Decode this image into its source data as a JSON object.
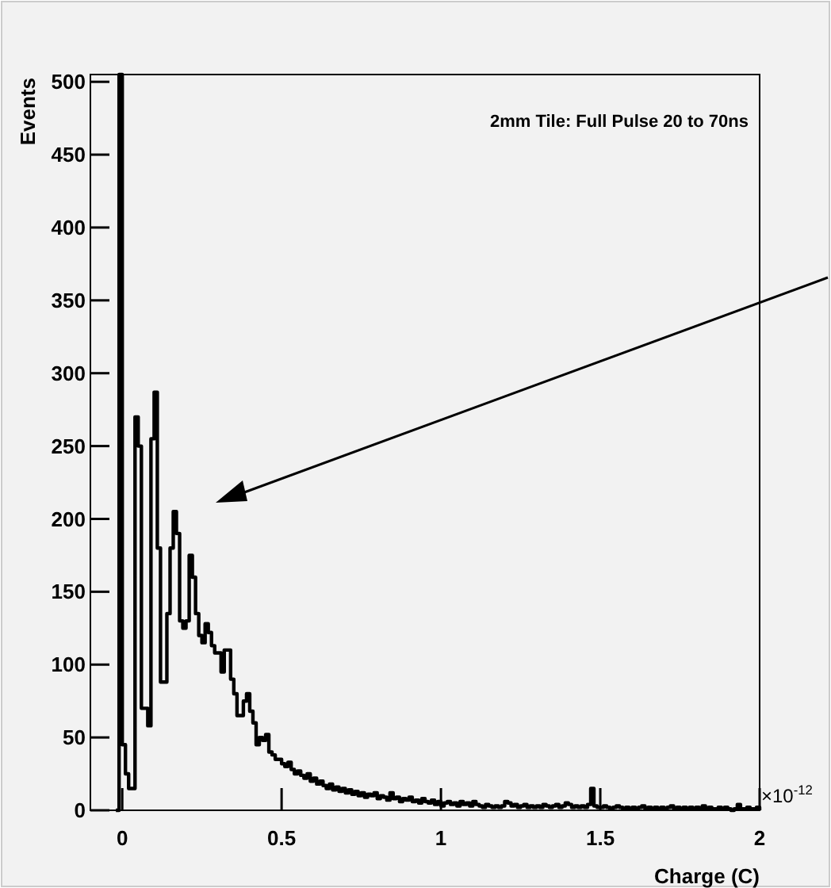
{
  "chart_data": {
    "type": "histogram",
    "title": "2mm Tile: Full Pulse 20 to 70ns",
    "xlabel": "Charge (C)",
    "ylabel": "Events",
    "annotations": [
      "×10$^{-12}$"
    ],
    "xlim": [
      -0.1,
      2
    ],
    "xticks": [
      0,
      0.5,
      1,
      1.5,
      2
    ],
    "ylim": [
      0,
      505
    ],
    "yticks": [
      0,
      50,
      100,
      150,
      200,
      250,
      300,
      350,
      400,
      450,
      500
    ],
    "color": "#000000",
    "bins": [
      -0.02,
      -0.01,
      0,
      0.01,
      0.02,
      0.03,
      0.04,
      0.05,
      0.06,
      0.07,
      0.08,
      0.09,
      0.1,
      0.11,
      0.12,
      0.13,
      0.14,
      0.15,
      0.16,
      0.17,
      0.18,
      0.19,
      0.2,
      0.21,
      0.22,
      0.23,
      0.24,
      0.25,
      0.26,
      0.27,
      0.28,
      0.29,
      0.3,
      0.31,
      0.32,
      0.33,
      0.34,
      0.35,
      0.36,
      0.37,
      0.38,
      0.39,
      0.4,
      0.41,
      0.42,
      0.43,
      0.44,
      0.45,
      0.46,
      0.47,
      0.48,
      0.49,
      0.5,
      0.51,
      0.52,
      0.53,
      0.54,
      0.55,
      0.56,
      0.57,
      0.58,
      0.59,
      0.6,
      0.61,
      0.62,
      0.63,
      0.64,
      0.65,
      0.66,
      0.67,
      0.68,
      0.69,
      0.7,
      0.71,
      0.72,
      0.73,
      0.74,
      0.75,
      0.76,
      0.77,
      0.78,
      0.79,
      0.8,
      0.81,
      0.82,
      0.83,
      0.84,
      0.85,
      0.86,
      0.87,
      0.88,
      0.89,
      0.9,
      0.91,
      0.92,
      0.93,
      0.94,
      0.95,
      0.96,
      0.97,
      0.98,
      0.99,
      1,
      1.01,
      1.02,
      1.03,
      1.04,
      1.05,
      1.06,
      1.07,
      1.08,
      1.09,
      1.1,
      1.11,
      1.12,
      1.13,
      1.14,
      1.15,
      1.16,
      1.17,
      1.18,
      1.19,
      1.2,
      1.21,
      1.22,
      1.23,
      1.24,
      1.25,
      1.26,
      1.27,
      1.28,
      1.29,
      1.3,
      1.31,
      1.32,
      1.33,
      1.34,
      1.35,
      1.36,
      1.37,
      1.38,
      1.39,
      1.4,
      1.41,
      1.42,
      1.43,
      1.44,
      1.45,
      1.46,
      1.47,
      1.48,
      1.49,
      1.5,
      1.51,
      1.52,
      1.53,
      1.54,
      1.55,
      1.56,
      1.57,
      1.58,
      1.59,
      1.6,
      1.61,
      1.62,
      1.63,
      1.64,
      1.65,
      1.66,
      1.67,
      1.68,
      1.69,
      1.7,
      1.71,
      1.72,
      1.73,
      1.74,
      1.75,
      1.76,
      1.77,
      1.78,
      1.79,
      1.8,
      1.81,
      1.82,
      1.83,
      1.84,
      1.85,
      1.86,
      1.87,
      1.88,
      1.89,
      1.9,
      1.91,
      1.92,
      1.93,
      1.94,
      1.95,
      1.96,
      1.97,
      1.98,
      1.99,
      2
    ],
    "values": [
      0,
      505,
      45,
      25,
      15,
      15,
      270,
      250,
      70,
      70,
      58,
      255,
      287,
      180,
      88,
      88,
      135,
      180,
      205,
      190,
      130,
      125,
      130,
      175,
      160,
      135,
      120,
      115,
      128,
      122,
      113,
      108,
      108,
      95,
      110,
      110,
      90,
      80,
      65,
      65,
      75,
      80,
      68,
      60,
      45,
      50,
      48,
      52,
      40,
      38,
      35,
      35,
      32,
      30,
      33,
      28,
      25,
      27,
      24,
      22,
      25,
      20,
      22,
      18,
      20,
      17,
      15,
      18,
      14,
      16,
      13,
      15,
      12,
      14,
      11,
      13,
      10,
      12,
      9,
      11,
      10,
      12,
      8,
      10,
      9,
      7,
      12,
      8,
      9,
      6,
      8,
      7,
      9,
      6,
      7,
      5,
      8,
      6,
      5,
      7,
      4,
      6,
      3,
      5,
      6,
      4,
      5,
      3,
      6,
      4,
      5,
      3,
      6,
      4,
      3,
      2,
      4,
      3,
      2,
      3,
      2,
      3,
      6,
      5,
      3,
      4,
      2,
      3,
      4,
      2,
      3,
      2,
      3,
      2,
      4,
      3,
      2,
      3,
      4,
      2,
      3,
      5,
      4,
      2,
      3,
      2,
      3,
      2,
      4,
      15,
      3,
      2,
      2,
      3,
      2,
      1,
      2,
      3,
      2,
      1,
      2,
      1,
      2,
      1,
      2,
      3,
      1,
      2,
      1,
      2,
      1,
      2,
      1,
      2,
      3,
      1,
      2,
      1,
      2,
      1,
      2,
      1,
      2,
      1,
      3,
      1,
      2,
      1,
      1,
      2,
      1,
      2,
      1,
      0,
      1,
      4,
      1,
      1,
      2,
      1,
      1,
      2
    ]
  }
}
